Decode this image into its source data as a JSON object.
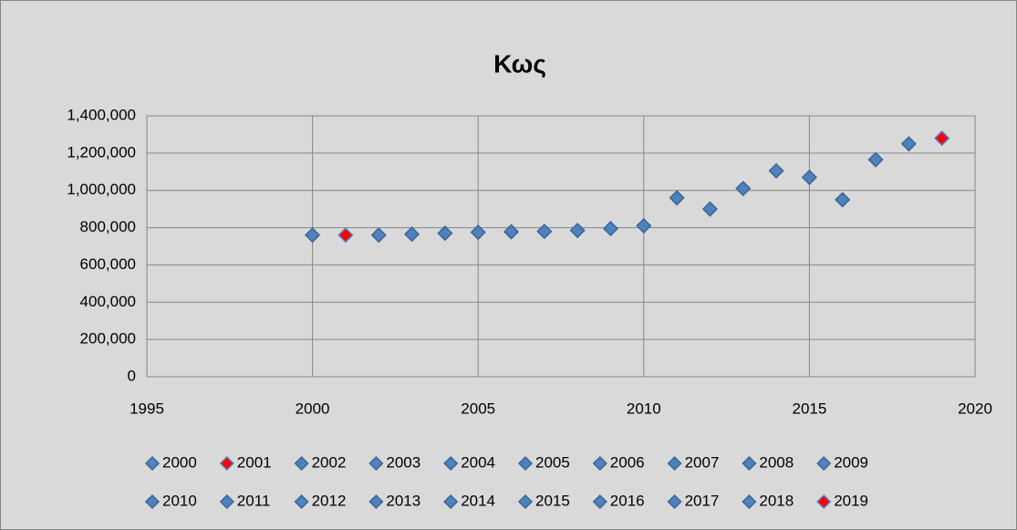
{
  "chart_data": {
    "type": "scatter",
    "title": "Κως",
    "series": [
      {
        "name": "2000",
        "x": [
          2000
        ],
        "values": [
          760000
        ],
        "color": "#4f81bd",
        "edge_color": "#3a6596"
      },
      {
        "name": "2001",
        "x": [
          2001
        ],
        "values": [
          760000
        ],
        "color": "#ff0000",
        "edge_color": "#4f81bd"
      },
      {
        "name": "2002",
        "x": [
          2002
        ],
        "values": [
          760000
        ],
        "color": "#4f81bd",
        "edge_color": "#3a6596"
      },
      {
        "name": "2003",
        "x": [
          2003
        ],
        "values": [
          765000
        ],
        "color": "#4f81bd",
        "edge_color": "#3a6596"
      },
      {
        "name": "2004",
        "x": [
          2004
        ],
        "values": [
          770000
        ],
        "color": "#4f81bd",
        "edge_color": "#3a6596"
      },
      {
        "name": "2005",
        "x": [
          2005
        ],
        "values": [
          775000
        ],
        "color": "#4f81bd",
        "edge_color": "#3a6596"
      },
      {
        "name": "2006",
        "x": [
          2006
        ],
        "values": [
          778000
        ],
        "color": "#4f81bd",
        "edge_color": "#3a6596"
      },
      {
        "name": "2007",
        "x": [
          2007
        ],
        "values": [
          780000
        ],
        "color": "#4f81bd",
        "edge_color": "#3a6596"
      },
      {
        "name": "2008",
        "x": [
          2008
        ],
        "values": [
          785000
        ],
        "color": "#4f81bd",
        "edge_color": "#3a6596"
      },
      {
        "name": "2009",
        "x": [
          2009
        ],
        "values": [
          795000
        ],
        "color": "#4f81bd",
        "edge_color": "#3a6596"
      },
      {
        "name": "2010",
        "x": [
          2010
        ],
        "values": [
          810000
        ],
        "color": "#4f81bd",
        "edge_color": "#3a6596"
      },
      {
        "name": "2011",
        "x": [
          2011
        ],
        "values": [
          960000
        ],
        "color": "#4f81bd",
        "edge_color": "#3a6596"
      },
      {
        "name": "2012",
        "x": [
          2012
        ],
        "values": [
          900000
        ],
        "color": "#4f81bd",
        "edge_color": "#3a6596"
      },
      {
        "name": "2013",
        "x": [
          2013
        ],
        "values": [
          1010000
        ],
        "color": "#4f81bd",
        "edge_color": "#3a6596"
      },
      {
        "name": "2014",
        "x": [
          2014
        ],
        "values": [
          1105000
        ],
        "color": "#4f81bd",
        "edge_color": "#3a6596"
      },
      {
        "name": "2015",
        "x": [
          2015
        ],
        "values": [
          1070000
        ],
        "color": "#4f81bd",
        "edge_color": "#3a6596"
      },
      {
        "name": "2016",
        "x": [
          2016
        ],
        "values": [
          950000
        ],
        "color": "#4f81bd",
        "edge_color": "#3a6596"
      },
      {
        "name": "2017",
        "x": [
          2017
        ],
        "values": [
          1165000
        ],
        "color": "#4f81bd",
        "edge_color": "#3a6596"
      },
      {
        "name": "2018",
        "x": [
          2018
        ],
        "values": [
          1250000
        ],
        "color": "#4f81bd",
        "edge_color": "#3a6596"
      },
      {
        "name": "2019",
        "x": [
          2019
        ],
        "values": [
          1280000
        ],
        "color": "#ff0000",
        "edge_color": "#4f81bd"
      }
    ],
    "xlim": [
      1995,
      2020
    ],
    "xticks": [
      1995,
      2000,
      2005,
      2010,
      2015,
      2020
    ],
    "ylim": [
      0,
      1400000
    ],
    "yticks": [
      0,
      {
        "value": 200000,
        "label": "200,000"
      },
      {
        "value": 400000,
        "label": "400,000"
      },
      {
        "value": 600000,
        "label": "600,000"
      },
      {
        "value": 800000,
        "label": "800,000"
      },
      {
        "value": 1000000,
        "label": "1,000,000"
      },
      {
        "value": 1200000,
        "label": "1,200,000"
      },
      {
        "value": 1400000,
        "label": "1,400,000"
      }
    ],
    "grid": true,
    "legend": "bottom"
  }
}
